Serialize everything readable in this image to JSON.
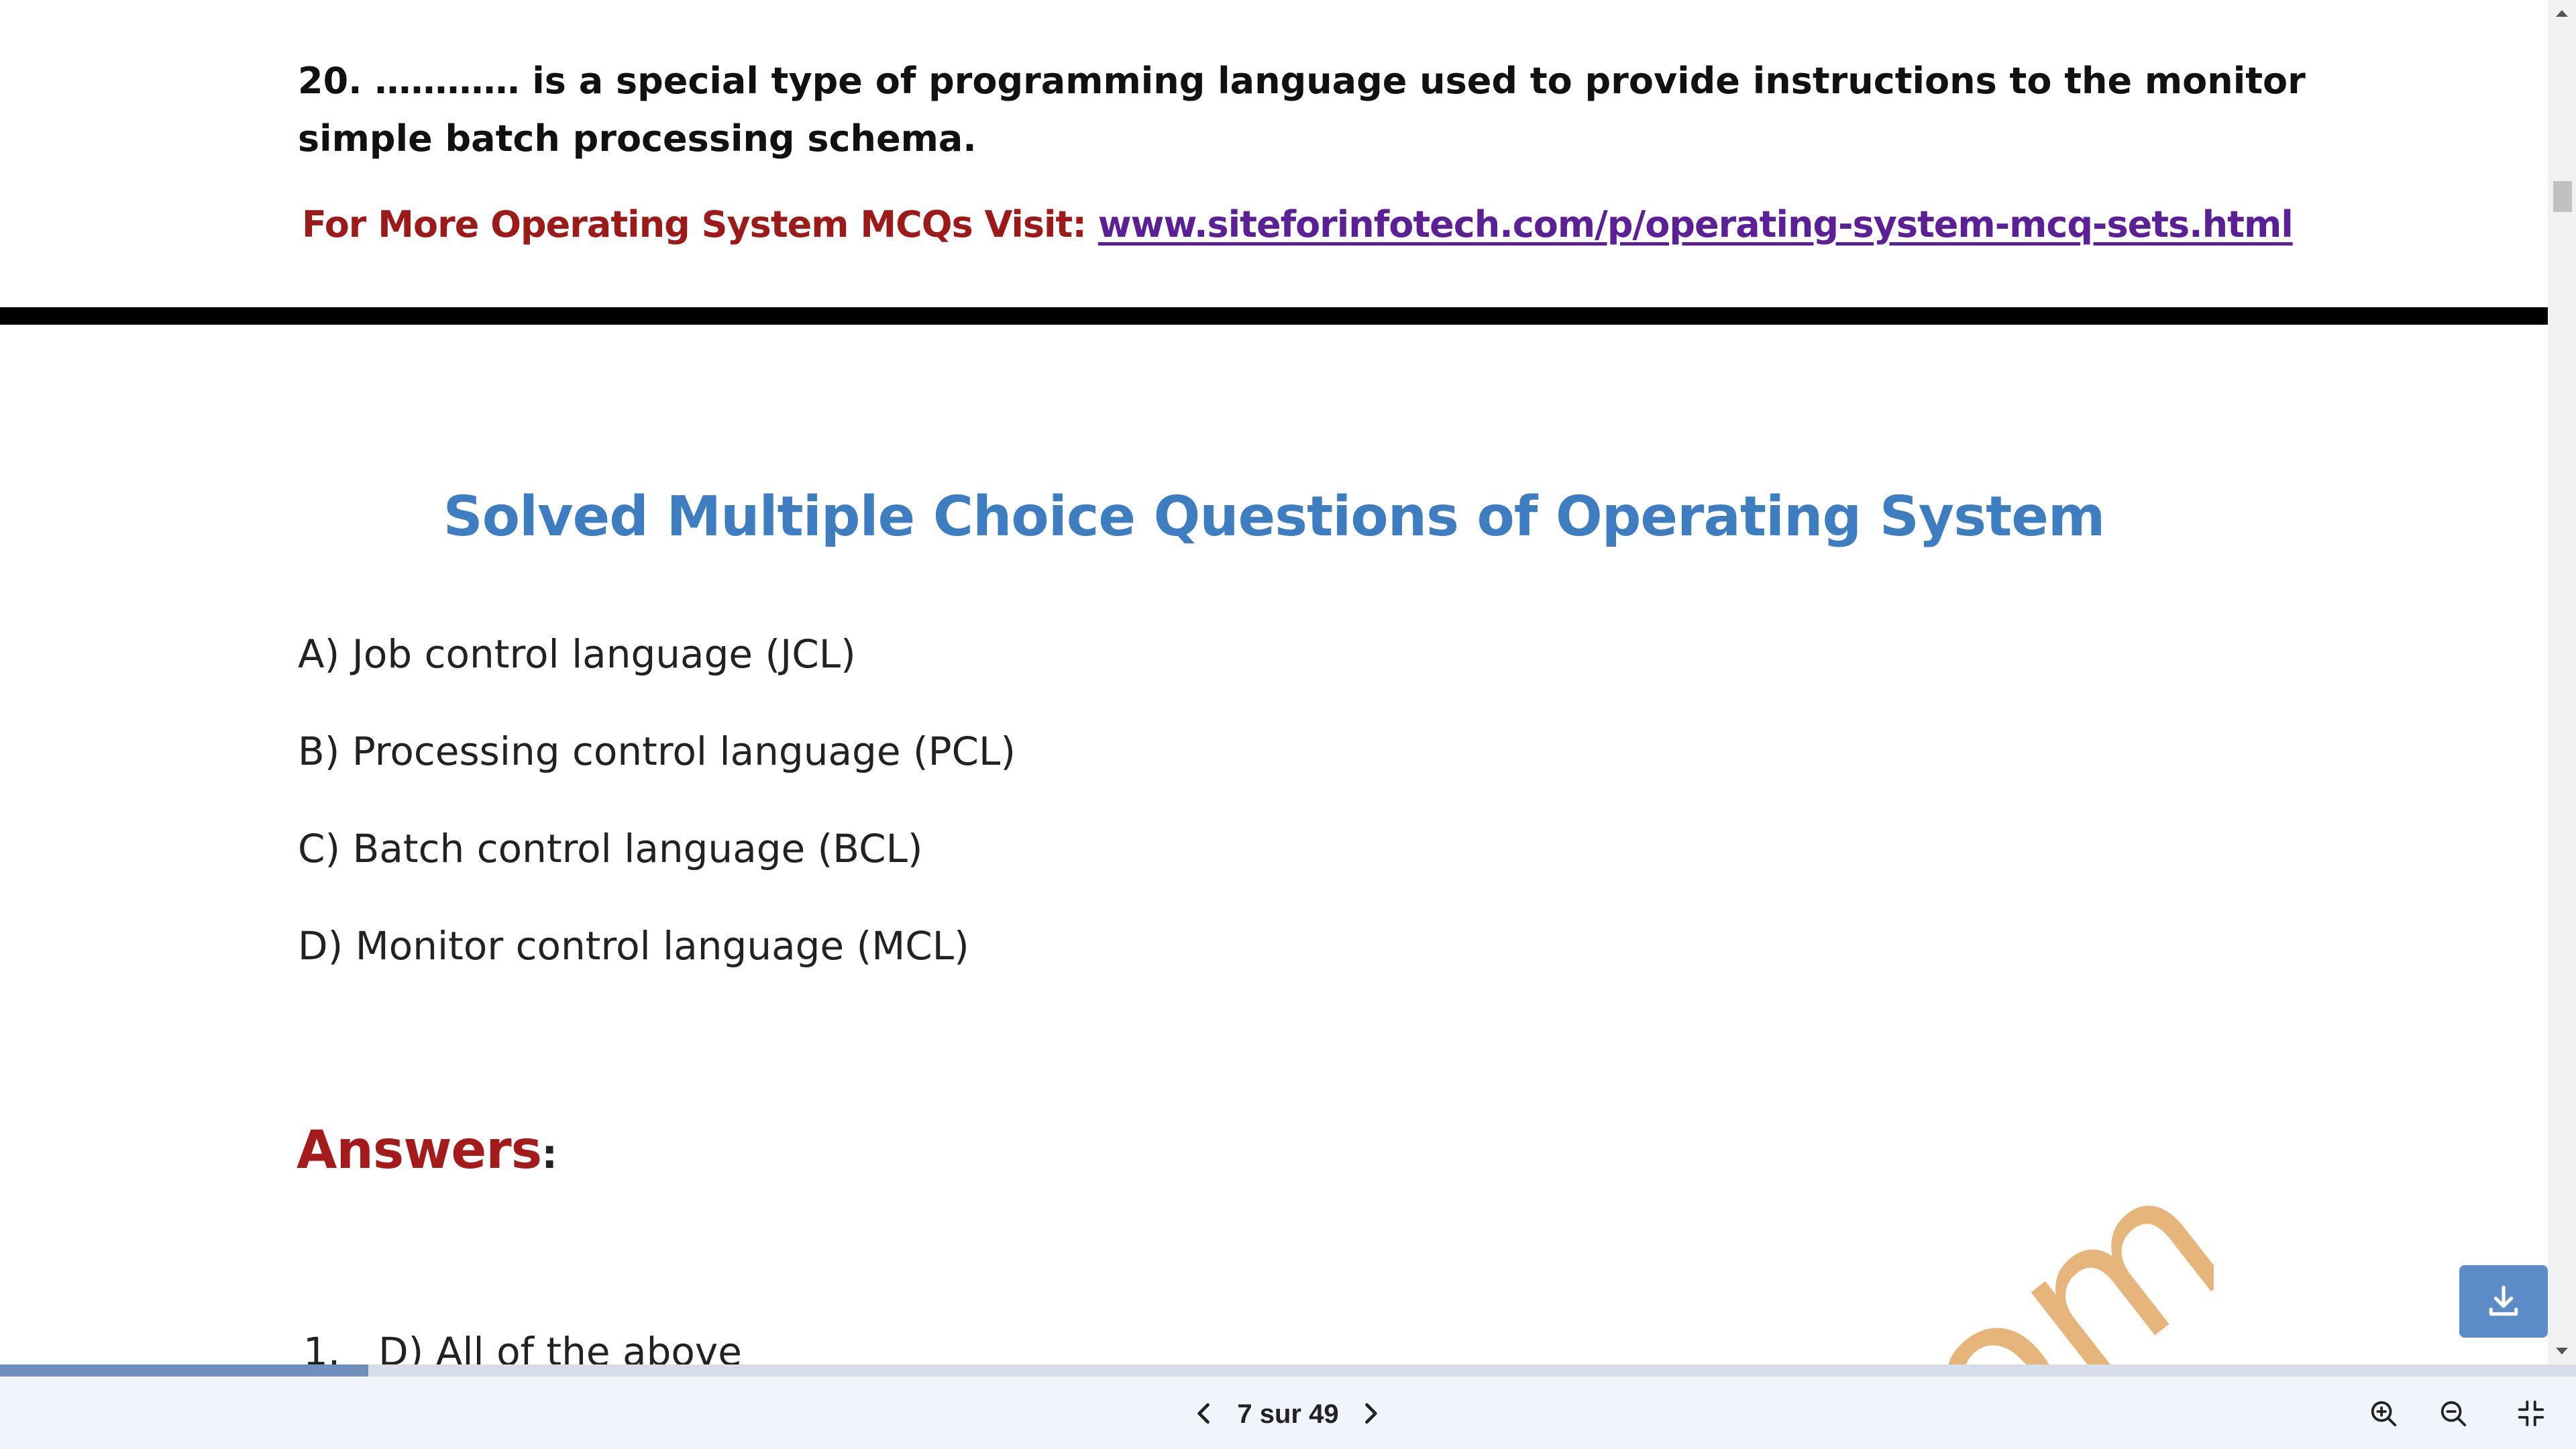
{
  "document": {
    "question": "20. ………… is a special type of programming language used to provide instructions to the monitor simple batch processing schema.",
    "promo_prefix": "For More Operating System MCQs Visit: ",
    "promo_link": "www.siteforinfotech.com/p/operating-system-mcq-sets.html",
    "heading": "Solved Multiple Choice Questions of Operating System",
    "options": [
      "A) Job control language (JCL)",
      "B) Processing control language (PCL)",
      "C) Batch control language (BCL)",
      "D) Monitor control language (MCL)"
    ],
    "answers_title": "Answers",
    "answers_colon": ":",
    "answers": [
      {
        "number": "1.",
        "text": "D) All of the above"
      }
    ],
    "watermark_text": "om"
  },
  "viewer": {
    "page_indicator": "7 sur 49",
    "progress_fraction": 0.143
  },
  "icons": {
    "download": "download-icon",
    "prev": "chevron-left-icon",
    "next": "chevron-right-icon",
    "zoom_in": "zoom-in-icon",
    "zoom_out": "zoom-out-icon",
    "exit_fullscreen": "exit-fullscreen-icon"
  },
  "colors": {
    "heading": "#3d7dc0",
    "answers": "#a31b1b",
    "promo": "#9c1a1a",
    "link": "#5b1f96",
    "download_button": "#5b8cc7",
    "watermark": "#e4ad6e"
  }
}
